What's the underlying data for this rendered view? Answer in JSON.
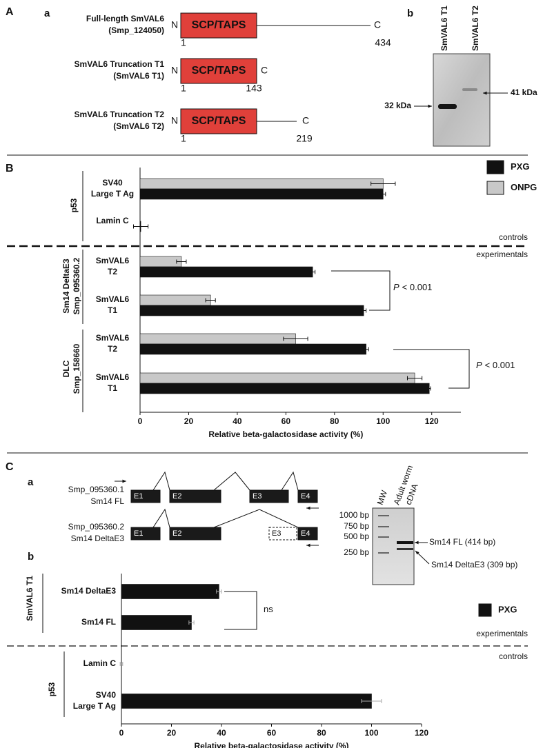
{
  "panel_a": {
    "label": "A",
    "sub_label": "a",
    "constructs": [
      {
        "name": [
          "Full-length SmVAL6",
          "(Smp_124050)"
        ],
        "domain": "SCP/TAPS",
        "n_term": "N",
        "c_term": "C",
        "start": 1,
        "end": 434
      },
      {
        "name": [
          "SmVAL6 Truncation T1",
          "(SmVAL6 T1)"
        ],
        "domain": "SCP/TAPS",
        "n_term": "N",
        "c_term": "C",
        "start": 1,
        "end": 143
      },
      {
        "name": [
          "SmVAL6 Truncation T2",
          "(SmVAL6 T2)"
        ],
        "domain": "SCP/TAPS",
        "n_term": "N",
        "c_term": "C",
        "start": 1,
        "end": 219
      }
    ],
    "western": {
      "label": "b",
      "lanes": [
        "SmVAL6 T1",
        "SmVAL6 T2"
      ],
      "markers": [
        "32 kDa",
        "41 kDa"
      ]
    }
  },
  "panel_c": {
    "label": "C",
    "sub_label": "a",
    "transcripts": [
      {
        "name": [
          "Smp_095360.1",
          "Sm14 FL"
        ],
        "exons": [
          "E1",
          "E2",
          "E3",
          "E4"
        ]
      },
      {
        "name": [
          "Smp_095360.2",
          "Sm14 DeltaE3"
        ],
        "exons": [
          "E1",
          "E2",
          "E3",
          "E4"
        ]
      }
    ],
    "gel": {
      "lanes": [
        [
          "MW"
        ],
        [
          "Adult worm",
          "cDNA"
        ]
      ],
      "ladder": [
        "1000 bp",
        "750 bp",
        "500 bp",
        "250 bp"
      ],
      "bands": [
        "Sm14 FL (414 bp)",
        "Sm14 DeltaE3 (309 bp)"
      ]
    }
  },
  "chart_data": [
    {
      "type": "bar",
      "orientation": "horizontal",
      "panel_label": "B",
      "groups": [
        {
          "name": [
            "p53"
          ],
          "categories": [
            [
              "SV40",
              "Large T Ag"
            ],
            [
              "Lamin C"
            ]
          ]
        },
        {
          "name": [
            "Sm14 DeltaE3",
            "Smp_095360.2"
          ],
          "categories": [
            [
              "SmVAL6",
              "T2"
            ],
            [
              "SmVAL6",
              "T1"
            ]
          ]
        },
        {
          "name": [
            "DLC",
            "Smp_158660"
          ],
          "categories": [
            [
              "SmVAL6",
              "T2"
            ],
            [
              "SmVAL6",
              "T1"
            ]
          ]
        }
      ],
      "series": [
        {
          "name": "PXG",
          "color": "#111111",
          "values": [
            100,
            0.3,
            71,
            92,
            93,
            119
          ],
          "errors": [
            1,
            3,
            1,
            1,
            1,
            0.5
          ]
        },
        {
          "name": "ONPG",
          "color": "#c8c8c8",
          "values": [
            100,
            0,
            17,
            29,
            64,
            113
          ],
          "errors": [
            5,
            0,
            2,
            2,
            5,
            3
          ]
        }
      ],
      "xlim": [
        0,
        132
      ],
      "xticks": [
        0,
        20,
        40,
        60,
        80,
        100,
        120
      ],
      "xlabel": "Relative beta-galactosidase activity (%)",
      "sections": {
        "above": "controls",
        "below": "experimentals"
      },
      "annotations": [
        {
          "italic": "P",
          "text": "< 0.001"
        },
        {
          "italic": "P",
          "text": "< 0.001"
        }
      ]
    },
    {
      "type": "bar",
      "orientation": "horizontal",
      "panel_label": "b",
      "groups": [
        {
          "name": [
            "SmVAL6 T1"
          ],
          "categories": [
            [
              "Sm14 DeltaE3"
            ],
            [
              "Sm14 FL"
            ]
          ]
        },
        {
          "name": [
            "p53"
          ],
          "categories": [
            [
              "Lamin C"
            ],
            [
              "SV40",
              "Large T Ag"
            ]
          ]
        }
      ],
      "series": [
        {
          "name": "PXG",
          "color": "#111111",
          "values": [
            39,
            28,
            0,
            100
          ],
          "errors": [
            1,
            1,
            0.5,
            4
          ]
        }
      ],
      "xlim": [
        0,
        120
      ],
      "xticks": [
        0,
        20,
        40,
        60,
        80,
        100,
        120
      ],
      "xlabel": "Relative beta-galactosidase activity (%)",
      "sections": {
        "above": "experimentals",
        "below": "controls"
      },
      "annotations": [
        {
          "text": "ns"
        }
      ]
    }
  ]
}
